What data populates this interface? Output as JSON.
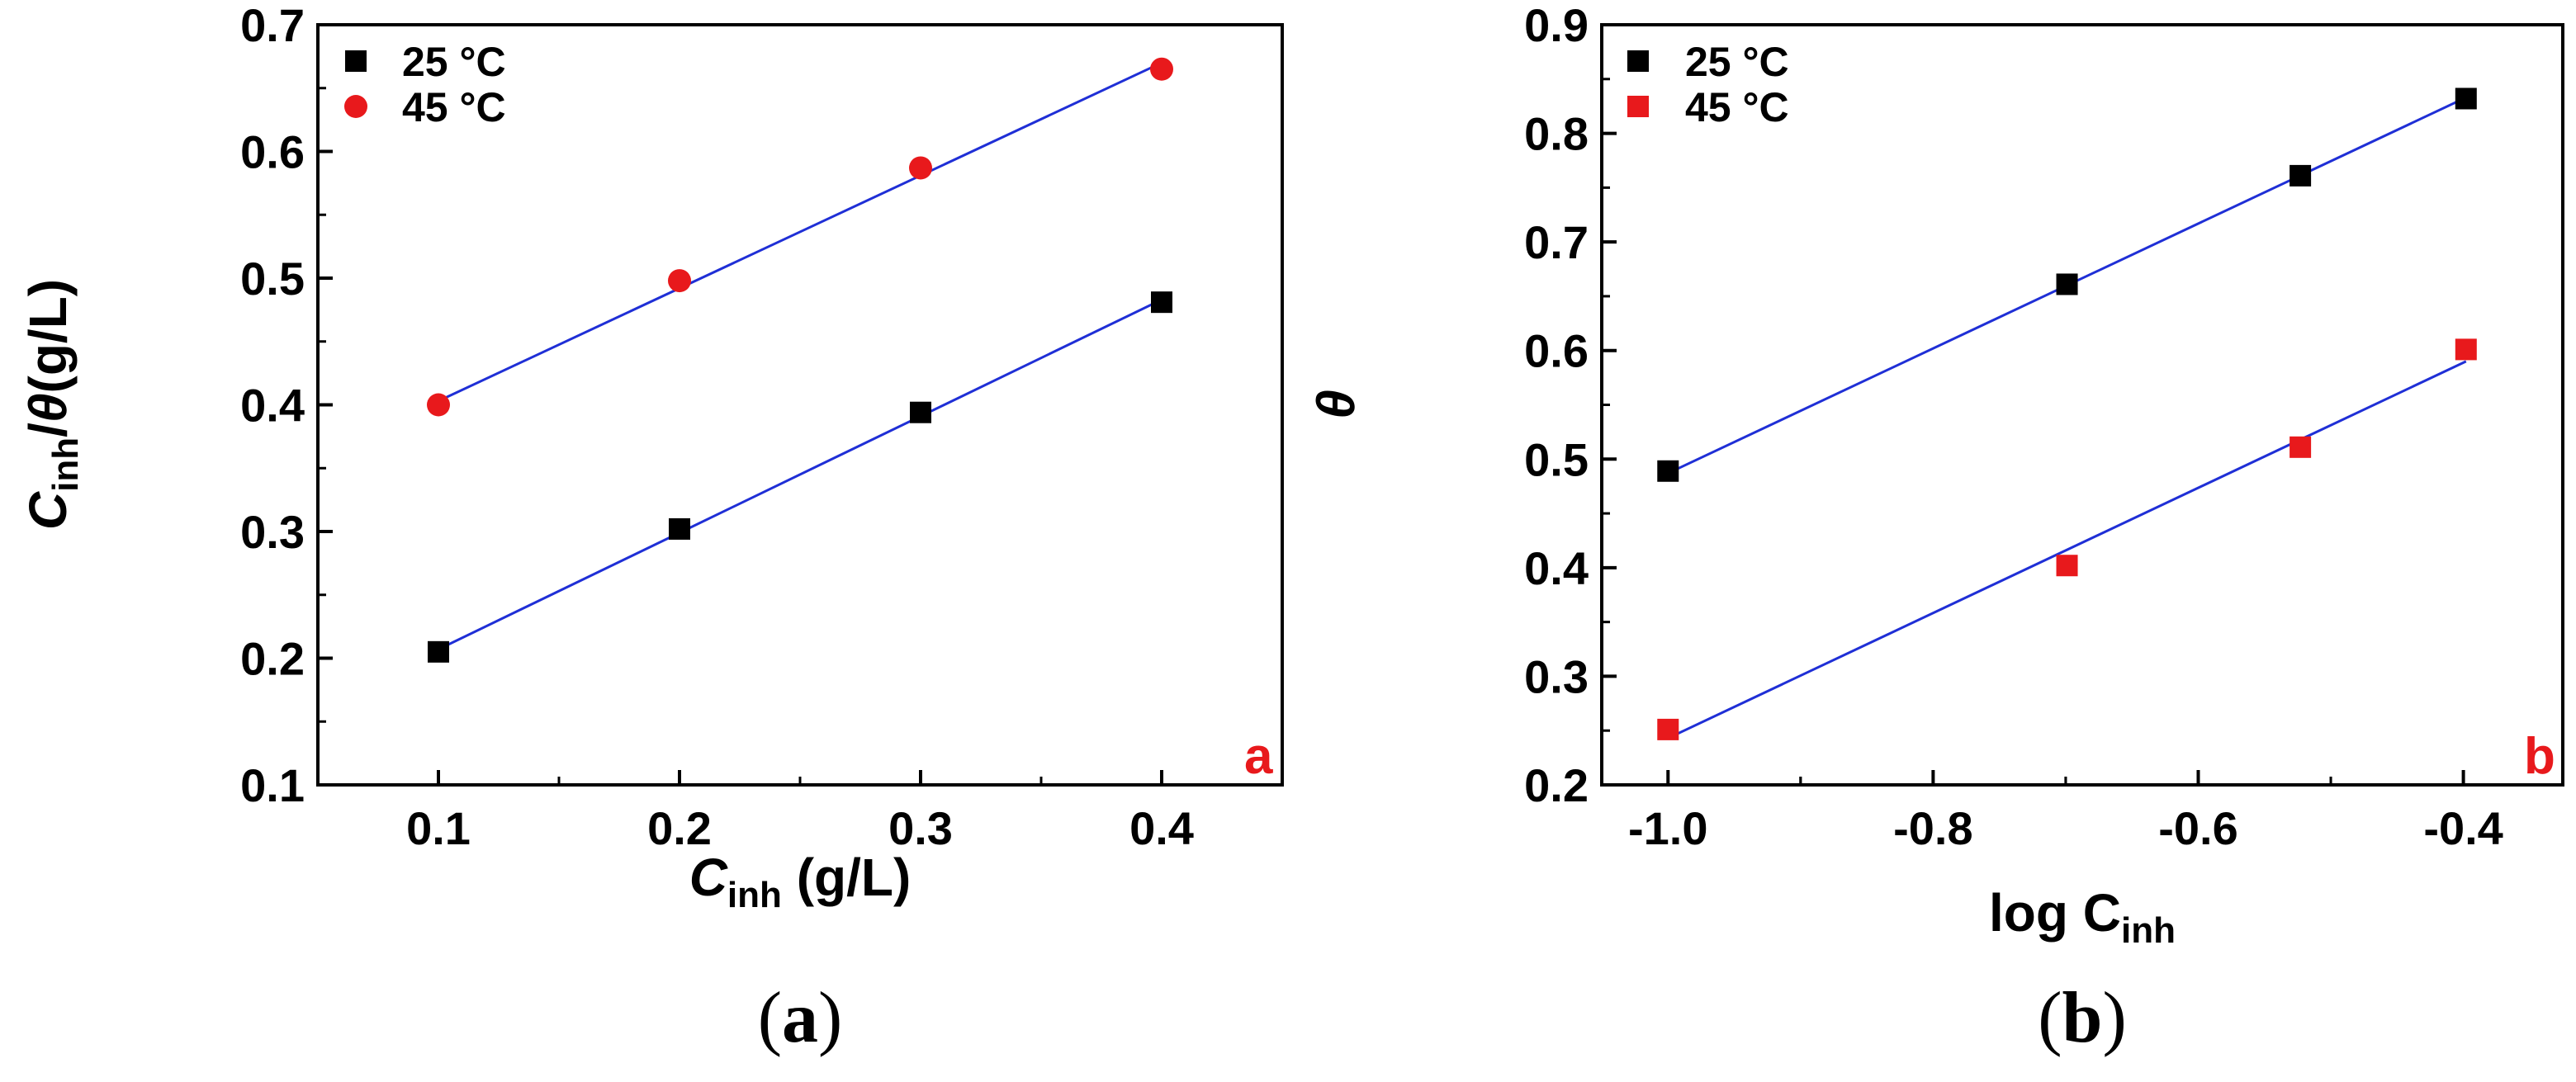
{
  "colors": {
    "series_25": "#000000",
    "series_45_a": "#e8191c",
    "series_45_b": "#e8191c",
    "fit_line": "#1f2fd6",
    "corner_label": "#e8191c"
  },
  "chart_data": [
    {
      "type": "scatter",
      "panel_id": "a",
      "title": "",
      "corner_label": "a",
      "caption_letter": "a",
      "xlabel": {
        "main": "C",
        "sub": "inh",
        "tail": " (g/L)"
      },
      "ylabel": {
        "main": "C",
        "sub": "inh",
        "mid": "/",
        "theta": "θ",
        "tail": "(g/L)"
      },
      "xlim": [
        0.05,
        0.45
      ],
      "ylim": [
        0.1,
        0.7
      ],
      "xticks": [
        "0.1",
        "0.2",
        "0.3",
        "0.4"
      ],
      "xtick_values": [
        0.1,
        0.2,
        0.3,
        0.4
      ],
      "yticks": [
        "0.1",
        "0.2",
        "0.3",
        "0.4",
        "0.5",
        "0.6",
        "0.7"
      ],
      "ytick_values": [
        0.1,
        0.2,
        0.3,
        0.4,
        0.5,
        0.6,
        0.7
      ],
      "legend": "top-left",
      "series": [
        {
          "name": "25 °C",
          "marker": "square",
          "color": "#000000",
          "x": [
            0.1,
            0.2,
            0.3,
            0.4
          ],
          "y": [
            0.205,
            0.302,
            0.394,
            0.481
          ],
          "fit": {
            "x": [
              0.1,
              0.4
            ],
            "y": [
              0.207,
              0.483
            ]
          }
        },
        {
          "name": "45 °C",
          "marker": "circle",
          "color": "#e8191c",
          "x": [
            0.1,
            0.2,
            0.3,
            0.4
          ],
          "y": [
            0.4,
            0.498,
            0.587,
            0.665
          ],
          "fit": {
            "x": [
              0.1,
              0.4
            ],
            "y": [
              0.403,
              0.67
            ]
          }
        }
      ]
    },
    {
      "type": "scatter",
      "panel_id": "b",
      "title": "",
      "corner_label": "b",
      "caption_letter": "b",
      "xlabel": {
        "main": "log C",
        "sub": "inh",
        "tail": ""
      },
      "ylabel": {
        "theta": "θ"
      },
      "xlim": [
        -1.05,
        -0.325
      ],
      "ylim": [
        0.2,
        0.9
      ],
      "xticks": [
        "-1.0",
        "-0.8",
        "-0.6",
        "-0.4"
      ],
      "xtick_values": [
        -1.0,
        -0.8,
        -0.6,
        -0.4
      ],
      "yticks": [
        "0.2",
        "0.3",
        "0.4",
        "0.5",
        "0.6",
        "0.7",
        "0.8",
        "0.9"
      ],
      "ytick_values": [
        0.2,
        0.3,
        0.4,
        0.5,
        0.6,
        0.7,
        0.8,
        0.9
      ],
      "legend": "top-left",
      "series": [
        {
          "name": "25 °C",
          "marker": "square",
          "color": "#000000",
          "x": [
            -1.0,
            -0.699,
            -0.523,
            -0.398
          ],
          "y": [
            0.489,
            0.661,
            0.761,
            0.832
          ],
          "fit": {
            "x": [
              -1.0,
              -0.398
            ],
            "y": [
              0.487,
              0.833
            ]
          }
        },
        {
          "name": "45 °C",
          "marker": "square",
          "color": "#e8191c",
          "x": [
            -1.0,
            -0.699,
            -0.523,
            -0.398
          ],
          "y": [
            0.251,
            0.402,
            0.511,
            0.601
          ],
          "fit": {
            "x": [
              -1.0,
              -0.398
            ],
            "y": [
              0.243,
              0.59
            ]
          }
        }
      ]
    }
  ]
}
